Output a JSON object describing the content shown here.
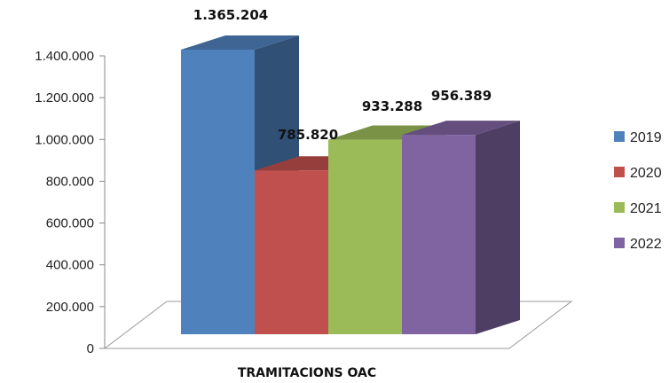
{
  "chart_data": {
    "type": "bar",
    "categories": [
      "TRAMITACIONS OAC"
    ],
    "series": [
      {
        "name": "2019",
        "values": [
          1365204
        ],
        "label": "1.365.204",
        "color": "#4f81bd"
      },
      {
        "name": "2020",
        "values": [
          785820
        ],
        "label": "785.820",
        "color": "#c0504d"
      },
      {
        "name": "2021",
        "values": [
          933288
        ],
        "label": "933.288",
        "color": "#9bbb59"
      },
      {
        "name": "2022",
        "values": [
          956389
        ],
        "label": "956.389",
        "color": "#8064a2"
      }
    ],
    "xlabel": "TRAMITACIONS OAC",
    "ylim": [
      0,
      1400000
    ],
    "yticks": [
      "0",
      "200.000",
      "400.000",
      "600.000",
      "800.000",
      "1.000.000",
      "1.200.000",
      "1.400.000"
    ],
    "legend_position": "right",
    "style": "3d-column"
  }
}
